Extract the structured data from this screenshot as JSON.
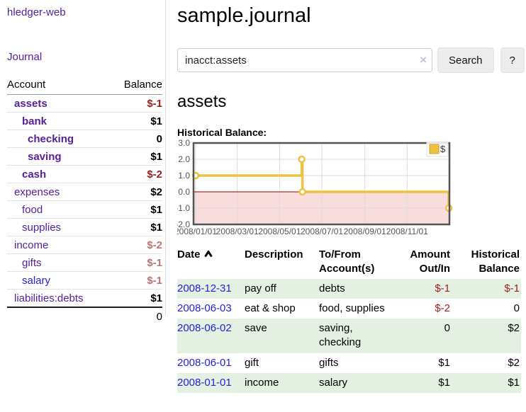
{
  "theme": {
    "purple_link": "#54219b",
    "blue_link": "#2323d6",
    "negative_dark": "#9b1f1f",
    "negative_muted": "#b97575",
    "row_stripe_green": "#e4f0e1",
    "chart_gold": "#edc240"
  },
  "sidebar": {
    "app_title": "hledger-web",
    "nav": {
      "journal_label": "Journal"
    },
    "table": {
      "account_header": "Account",
      "balance_header": "Balance",
      "accounts": [
        {
          "name": "assets",
          "balance": "$-1",
          "level": 1,
          "bold": true,
          "muted": false,
          "blue": false
        },
        {
          "name": "bank",
          "balance": "$1",
          "level": 2,
          "bold": true,
          "muted": false,
          "blue": false
        },
        {
          "name": "checking",
          "balance": "0",
          "level": 3,
          "bold": true,
          "muted": false,
          "blue": false
        },
        {
          "name": "saving",
          "balance": "$1",
          "level": 3,
          "bold": true,
          "muted": false,
          "blue": false
        },
        {
          "name": "cash",
          "balance": "$-2",
          "level": 2,
          "bold": true,
          "muted": false,
          "blue": false
        },
        {
          "name": "expenses",
          "balance": "$2",
          "level": 1,
          "bold": false,
          "muted": false,
          "blue": false
        },
        {
          "name": "food",
          "balance": "$1",
          "level": 2,
          "bold": false,
          "muted": false,
          "blue": false
        },
        {
          "name": "supplies",
          "balance": "$1",
          "level": 2,
          "bold": false,
          "muted": false,
          "blue": false
        },
        {
          "name": "income",
          "balance": "$-2",
          "level": 1,
          "bold": false,
          "muted": true,
          "blue": false
        },
        {
          "name": "gifts",
          "balance": "$-1",
          "level": 2,
          "bold": false,
          "muted": true,
          "blue": false
        },
        {
          "name": "salary",
          "balance": "$-1",
          "level": 2,
          "bold": false,
          "muted": true,
          "blue": true
        },
        {
          "name": "liabilities:debts",
          "balance": "$1",
          "level": 1,
          "bold": false,
          "muted": false,
          "blue": false
        }
      ],
      "total": "0"
    }
  },
  "main": {
    "title": "sample.journal",
    "search": {
      "query": "inacct:assets",
      "clear_icon": "×",
      "button_label": "Search",
      "help_label": "?"
    },
    "account_heading": "assets",
    "chart_label": "Historical Balance:",
    "register": {
      "columns": [
        "Date",
        "Description",
        "To/From Account(s)",
        "Amount Out/In",
        "Historical Balance"
      ],
      "rows": [
        {
          "date": "2008-12-31",
          "description": "pay off",
          "accounts": "debts",
          "amount": "$-1",
          "balance": "$-1"
        },
        {
          "date": "2008-06-03",
          "description": "eat & shop",
          "accounts": "food, supplies",
          "amount": "$-2",
          "balance": "0"
        },
        {
          "date": "2008-06-02",
          "description": "save",
          "accounts": "saving, checking",
          "amount": "0",
          "balance": "$2"
        },
        {
          "date": "2008-06-01",
          "description": "gift",
          "accounts": "gifts",
          "amount": "$1",
          "balance": "$2"
        },
        {
          "date": "2008-01-01",
          "description": "income",
          "accounts": "salary",
          "amount": "$1",
          "balance": "$1"
        }
      ]
    }
  },
  "chart_data": {
    "type": "line",
    "step": true,
    "title": "Historical Balance",
    "series": [
      {
        "name": "$",
        "color": "#edc240",
        "points": [
          [
            "2008/01/01",
            1
          ],
          [
            "2008/06/02",
            2
          ],
          [
            "2008/06/03",
            0
          ],
          [
            "2008/12/31",
            -1
          ]
        ]
      }
    ],
    "xlim": [
      "2008/01/01",
      "2009/01/01"
    ],
    "ylim": [
      -2,
      3
    ],
    "x_ticks": [
      "2008/01/01",
      "2008/03/01",
      "2008/05/01",
      "2008/07/01",
      "2008/09/01",
      "2008/11/01"
    ],
    "y_ticks": [
      3.0,
      2.0,
      1.0,
      0.0,
      -1.0,
      -2.0
    ],
    "legend": {
      "position": "top-right",
      "label": "$"
    },
    "grid": true,
    "negative_region_fill": "#f9dcdc",
    "zero_line_color": "#8b0000",
    "grid_color": "#dcdcdc",
    "border_color": "#545454",
    "tick_label_color": "#555555"
  }
}
